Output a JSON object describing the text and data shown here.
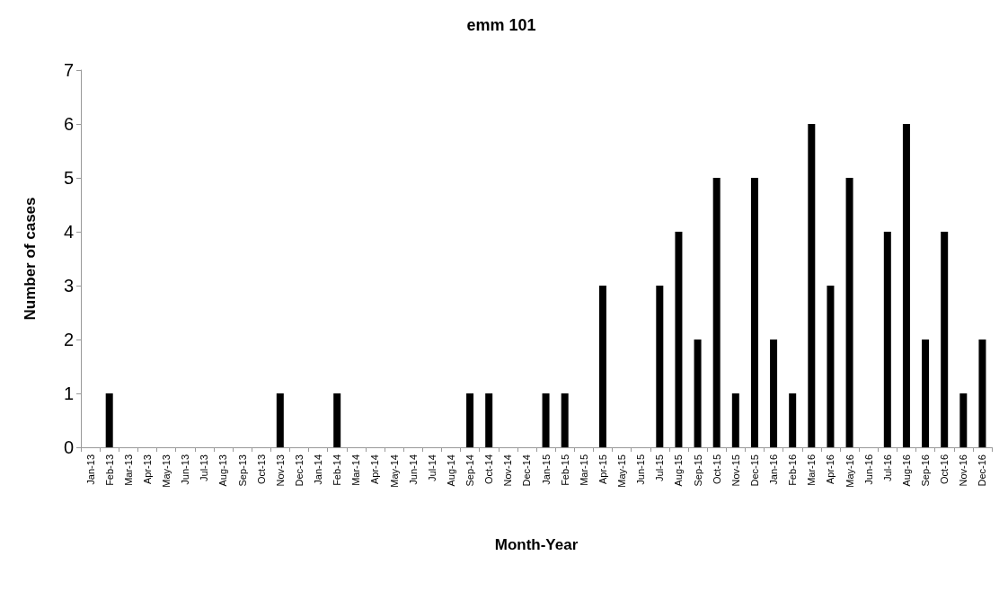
{
  "chart_data": {
    "type": "bar",
    "title": "emm 101",
    "xlabel": "Month-Year",
    "ylabel": "Number of cases",
    "categories": [
      "Jan-13",
      "Feb-13",
      "Mar-13",
      "Apr-13",
      "May-13",
      "Jun-13",
      "Jul-13",
      "Aug-13",
      "Sep-13",
      "Oct-13",
      "Nov-13",
      "Dec-13",
      "Jan-14",
      "Feb-14",
      "Mar-14",
      "Apr-14",
      "May-14",
      "Jun-14",
      "Jul-14",
      "Aug-14",
      "Sep-14",
      "Oct-14",
      "Nov-14",
      "Dec-14",
      "Jan-15",
      "Feb-15",
      "Mar-15",
      "Apr-15",
      "May-15",
      "Jun-15",
      "Jul-15",
      "Aug-15",
      "Sep-15",
      "Oct-15",
      "Nov-15",
      "Dec-15",
      "Jan-16",
      "Feb-16",
      "Mar-16",
      "Apr-16",
      "May-16",
      "Jun-16",
      "Jul-16",
      "Aug-16",
      "Sep-16",
      "Oct-16",
      "Nov-16",
      "Dec-16"
    ],
    "values": [
      0,
      1,
      0,
      0,
      0,
      0,
      0,
      0,
      0,
      0,
      1,
      0,
      0,
      1,
      0,
      0,
      0,
      0,
      0,
      0,
      1,
      1,
      0,
      0,
      1,
      1,
      0,
      3,
      0,
      0,
      3,
      4,
      2,
      5,
      1,
      5,
      2,
      1,
      6,
      3,
      5,
      0,
      4,
      6,
      2,
      4,
      1,
      2
    ],
    "color": "#000000",
    "ylim": [
      0,
      7
    ],
    "yticks": [
      0,
      1,
      2,
      3,
      4,
      5,
      6,
      7
    ],
    "grid": false
  }
}
